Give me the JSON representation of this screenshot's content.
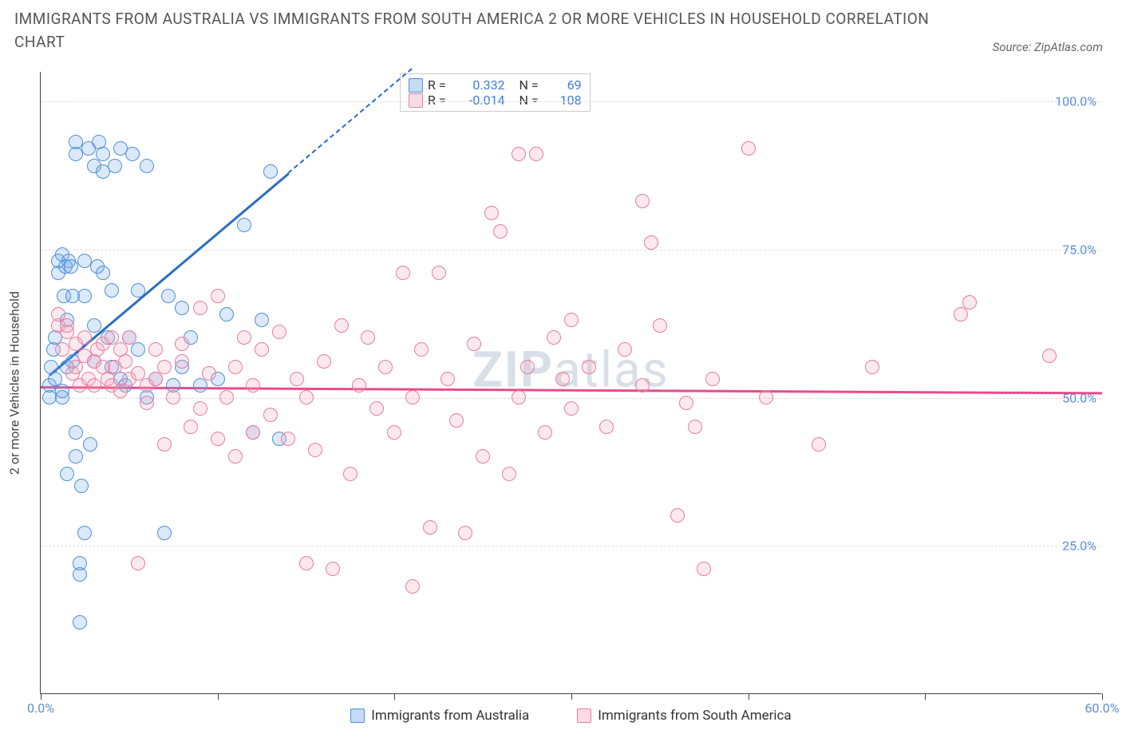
{
  "title": "IMMIGRANTS FROM AUSTRALIA VS IMMIGRANTS FROM SOUTH AMERICA 2 OR MORE VEHICLES IN HOUSEHOLD CORRELATION CHART",
  "source": "Source: ZipAtlas.com",
  "watermark_bold": "ZIP",
  "watermark_rest": "atlas",
  "chart": {
    "type": "scatter",
    "ylabel": "2 or more Vehicles in Household",
    "xlim": [
      0,
      60
    ],
    "ylim": [
      0,
      105
    ],
    "xticks": [
      0,
      10,
      20,
      30,
      40,
      50,
      60
    ],
    "xtick_labels": {
      "0": "0.0%",
      "60": "60.0%"
    },
    "yticks": [
      25,
      50,
      75,
      100
    ],
    "ytick_labels": [
      "25.0%",
      "50.0%",
      "75.0%",
      "100.0%"
    ],
    "grid_color": "#dddddd",
    "background": "#ffffff",
    "point_radius": 9,
    "point_opacity_fill": 0.25,
    "point_border_width": 1.5,
    "series": [
      {
        "name": "Immigrants from Australia",
        "color": "#6fa8e8",
        "border": "#4f8fd8",
        "R": "0.332",
        "N": "69",
        "trend": {
          "x1": 0.5,
          "y1": 54,
          "x2": 14,
          "y2": 88,
          "extend_to_x": 21,
          "color": "#2b6cc4"
        },
        "points": [
          [
            0.5,
            52
          ],
          [
            0.5,
            50
          ],
          [
            0.6,
            55
          ],
          [
            0.7,
            58
          ],
          [
            0.8,
            53
          ],
          [
            0.8,
            60
          ],
          [
            1.0,
            73
          ],
          [
            1.0,
            71
          ],
          [
            1.2,
            50
          ],
          [
            1.2,
            51
          ],
          [
            1.2,
            74
          ],
          [
            1.3,
            67
          ],
          [
            1.4,
            72
          ],
          [
            1.5,
            63
          ],
          [
            1.5,
            55
          ],
          [
            1.5,
            37
          ],
          [
            1.6,
            73
          ],
          [
            1.7,
            72
          ],
          [
            1.8,
            67
          ],
          [
            1.8,
            56
          ],
          [
            2.0,
            91
          ],
          [
            2.0,
            93
          ],
          [
            2.0,
            44
          ],
          [
            2.0,
            40
          ],
          [
            2.2,
            22
          ],
          [
            2.2,
            20
          ],
          [
            2.2,
            12
          ],
          [
            2.3,
            35
          ],
          [
            2.5,
            73
          ],
          [
            2.5,
            67
          ],
          [
            2.5,
            27
          ],
          [
            2.7,
            92
          ],
          [
            2.8,
            42
          ],
          [
            3.0,
            89
          ],
          [
            3.0,
            56
          ],
          [
            3.0,
            62
          ],
          [
            3.2,
            72
          ],
          [
            3.3,
            93
          ],
          [
            3.5,
            88
          ],
          [
            3.5,
            91
          ],
          [
            3.5,
            71
          ],
          [
            3.8,
            60
          ],
          [
            4.0,
            68
          ],
          [
            4.0,
            55
          ],
          [
            4.2,
            89
          ],
          [
            4.5,
            53
          ],
          [
            4.5,
            92
          ],
          [
            4.8,
            52
          ],
          [
            5.0,
            60
          ],
          [
            5.2,
            91
          ],
          [
            5.5,
            58
          ],
          [
            5.5,
            68
          ],
          [
            6.0,
            50
          ],
          [
            6.0,
            89
          ],
          [
            6.5,
            53
          ],
          [
            7.0,
            27
          ],
          [
            7.2,
            67
          ],
          [
            7.5,
            52
          ],
          [
            8.0,
            55
          ],
          [
            8.0,
            65
          ],
          [
            8.5,
            60
          ],
          [
            9.0,
            52
          ],
          [
            10.0,
            53
          ],
          [
            10.5,
            64
          ],
          [
            11.5,
            79
          ],
          [
            12.0,
            44
          ],
          [
            12.5,
            63
          ],
          [
            13.0,
            88
          ],
          [
            13.5,
            43
          ]
        ]
      },
      {
        "name": "Immigrants from South America",
        "color": "#f5a8bd",
        "border": "#ea7ca0",
        "R": "-0.014",
        "N": "108",
        "trend": {
          "x1": 0,
          "y1": 52,
          "x2": 60,
          "y2": 51,
          "color": "#e94b8a"
        },
        "points": [
          [
            1.0,
            62
          ],
          [
            1.0,
            64
          ],
          [
            1.2,
            58
          ],
          [
            1.5,
            61
          ],
          [
            1.5,
            62
          ],
          [
            1.8,
            54
          ],
          [
            2.0,
            59
          ],
          [
            2.0,
            55
          ],
          [
            2.2,
            52
          ],
          [
            2.5,
            60
          ],
          [
            2.5,
            57
          ],
          [
            2.7,
            53
          ],
          [
            3.0,
            56
          ],
          [
            3.0,
            52
          ],
          [
            3.2,
            58
          ],
          [
            3.5,
            55
          ],
          [
            3.5,
            59
          ],
          [
            3.8,
            53
          ],
          [
            4.0,
            60
          ],
          [
            4.0,
            52
          ],
          [
            4.2,
            55
          ],
          [
            4.5,
            51
          ],
          [
            4.5,
            58
          ],
          [
            4.8,
            56
          ],
          [
            5.0,
            53
          ],
          [
            5.0,
            60
          ],
          [
            5.5,
            54
          ],
          [
            5.5,
            22
          ],
          [
            6.0,
            52
          ],
          [
            6.0,
            49
          ],
          [
            6.5,
            58
          ],
          [
            6.5,
            53
          ],
          [
            7.0,
            55
          ],
          [
            7.0,
            42
          ],
          [
            7.5,
            50
          ],
          [
            8.0,
            56
          ],
          [
            8.0,
            59
          ],
          [
            8.5,
            45
          ],
          [
            9.0,
            65
          ],
          [
            9.0,
            48
          ],
          [
            9.5,
            54
          ],
          [
            10.0,
            43
          ],
          [
            10.0,
            67
          ],
          [
            10.5,
            50
          ],
          [
            11.0,
            55
          ],
          [
            11.0,
            40
          ],
          [
            11.5,
            60
          ],
          [
            12.0,
            44
          ],
          [
            12.0,
            52
          ],
          [
            12.5,
            58
          ],
          [
            13.0,
            47
          ],
          [
            13.5,
            61
          ],
          [
            14.0,
            43
          ],
          [
            14.5,
            53
          ],
          [
            15.0,
            50
          ],
          [
            15.0,
            22
          ],
          [
            15.5,
            41
          ],
          [
            16.0,
            56
          ],
          [
            16.5,
            21
          ],
          [
            17.0,
            62
          ],
          [
            17.5,
            37
          ],
          [
            18.0,
            52
          ],
          [
            18.5,
            60
          ],
          [
            19.0,
            48
          ],
          [
            19.5,
            55
          ],
          [
            20.0,
            44
          ],
          [
            20.5,
            71
          ],
          [
            21.0,
            50
          ],
          [
            21.0,
            18
          ],
          [
            21.5,
            58
          ],
          [
            22.0,
            28
          ],
          [
            22.5,
            71
          ],
          [
            23.0,
            53
          ],
          [
            23.5,
            46
          ],
          [
            24.0,
            27
          ],
          [
            24.5,
            59
          ],
          [
            25.0,
            40
          ],
          [
            25.5,
            81
          ],
          [
            26.0,
            78
          ],
          [
            26.5,
            37
          ],
          [
            27.0,
            50
          ],
          [
            27.5,
            55
          ],
          [
            28.0,
            91
          ],
          [
            28.5,
            44
          ],
          [
            29.0,
            60
          ],
          [
            29.5,
            53
          ],
          [
            30.0,
            48
          ],
          [
            30.0,
            63
          ],
          [
            31.0,
            55
          ],
          [
            32.0,
            45
          ],
          [
            33.0,
            58
          ],
          [
            34.0,
            52
          ],
          [
            34.5,
            76
          ],
          [
            35.0,
            62
          ],
          [
            36.0,
            30
          ],
          [
            36.5,
            49
          ],
          [
            37.0,
            45
          ],
          [
            37.5,
            21
          ],
          [
            38.0,
            53
          ],
          [
            40.0,
            92
          ],
          [
            41.0,
            50
          ],
          [
            44.0,
            42
          ],
          [
            47.0,
            55
          ],
          [
            52.0,
            64
          ],
          [
            52.5,
            66
          ],
          [
            57.0,
            57
          ],
          [
            34.0,
            83
          ],
          [
            27.0,
            91
          ]
        ]
      }
    ]
  },
  "legend_stats_label_R": "R =",
  "legend_stats_label_N": "N =",
  "value_color": "#3b7dd8"
}
